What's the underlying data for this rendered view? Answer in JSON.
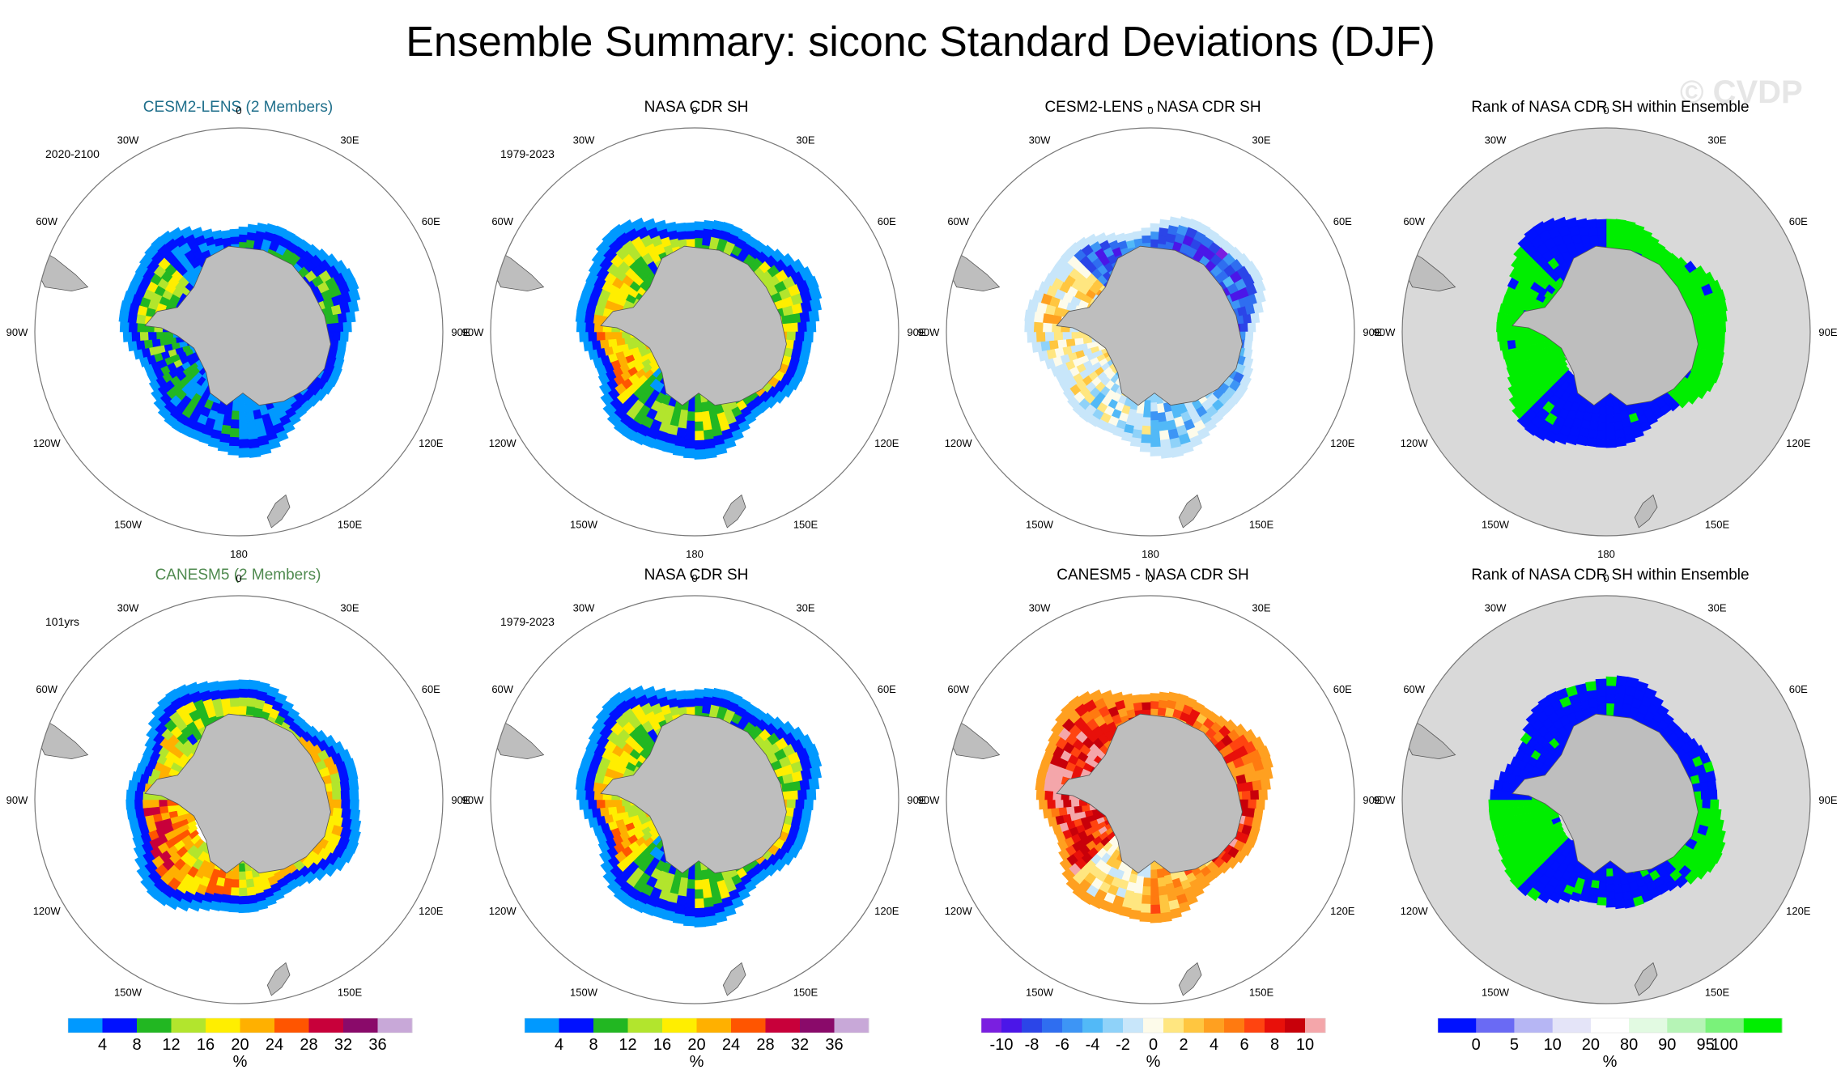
{
  "title": "Ensemble Summary: siconc Standard Deviations (DJF)",
  "watermark": "© CVDP",
  "longitude_labels": [
    "0",
    "30E",
    "60E",
    "90E",
    "120E",
    "150E",
    "180",
    "150W",
    "120W",
    "90W",
    "60W",
    "30W"
  ],
  "panels": [
    {
      "title": "CESM2-LENS (2 Members)",
      "title_color": "#1f6f8b",
      "period": "2020-2100",
      "kind": "stddev",
      "seed": 11,
      "field": "cesm"
    },
    {
      "title": "NASA CDR SH",
      "title_color": "#000000",
      "period": "1979-2023",
      "kind": "stddev",
      "seed": 23,
      "field": "obs"
    },
    {
      "title": "CESM2-LENS - NASA CDR SH",
      "title_color": "#000000",
      "period": "",
      "kind": "diff",
      "seed": 37,
      "field": "diff1"
    },
    {
      "title": "Rank of NASA CDR SH within Ensemble",
      "title_color": "#000000",
      "period": "",
      "kind": "rank",
      "seed": 41,
      "field": "rank1"
    },
    {
      "title": "CANESM5 (2 Members)",
      "title_color": "#4f8a4f",
      "period": "101yrs",
      "kind": "stddev",
      "seed": 53,
      "field": "canesm"
    },
    {
      "title": "NASA CDR SH",
      "title_color": "#000000",
      "period": "1979-2023",
      "kind": "stddev",
      "seed": 23,
      "field": "obs"
    },
    {
      "title": "CANESM5 - NASA CDR SH",
      "title_color": "#000000",
      "period": "",
      "kind": "diff",
      "seed": 67,
      "field": "diff2"
    },
    {
      "title": "Rank of NASA CDR SH within Ensemble",
      "title_color": "#000000",
      "period": "",
      "kind": "rank",
      "seed": 71,
      "field": "rank2"
    }
  ],
  "colorbars": [
    {
      "kind": "stddev",
      "labels": [
        "4",
        "8",
        "12",
        "16",
        "20",
        "24",
        "28",
        "32",
        "36"
      ],
      "unit": "%",
      "colors": [
        "#0099ff",
        "#0011ff",
        "#22b722",
        "#b2e52d",
        "#ffee00",
        "#ffb000",
        "#ff5500",
        "#c8003a",
        "#8a0a6a",
        "#c8a8d8"
      ]
    },
    {
      "kind": "stddev",
      "labels": [
        "4",
        "8",
        "12",
        "16",
        "20",
        "24",
        "28",
        "32",
        "36"
      ],
      "unit": "%",
      "colors": [
        "#0099ff",
        "#0011ff",
        "#22b722",
        "#b2e52d",
        "#ffee00",
        "#ffb000",
        "#ff5500",
        "#c8003a",
        "#8a0a6a",
        "#c8a8d8"
      ]
    },
    {
      "kind": "diff",
      "labels": [
        "-10",
        "-8",
        "-6",
        "-4",
        "-2",
        "0",
        "2",
        "4",
        "6",
        "8",
        "10"
      ],
      "unit": "%",
      "colors": [
        "#7a1fe0",
        "#4b16e8",
        "#2b45e8",
        "#2f6ef0",
        "#3d95f5",
        "#52b9f7",
        "#8fd2f9",
        "#c8e6fa",
        "#fdfbea",
        "#ffe680",
        "#ffc640",
        "#ffa020",
        "#ff7a10",
        "#ff4410",
        "#e8100a",
        "#c8000a",
        "#f4a6aa"
      ]
    },
    {
      "kind": "rank",
      "labels": [
        "0",
        "5",
        "10",
        "20",
        "80",
        "90",
        "95",
        "100"
      ],
      "unit": "%",
      "colors": [
        "#0011ff",
        "#6a6af4",
        "#b6b6f4",
        "#e4e4f8",
        "#ffffff",
        "#e2fae2",
        "#b6f4b6",
        "#7af27a",
        "#00ee00"
      ]
    }
  ]
}
